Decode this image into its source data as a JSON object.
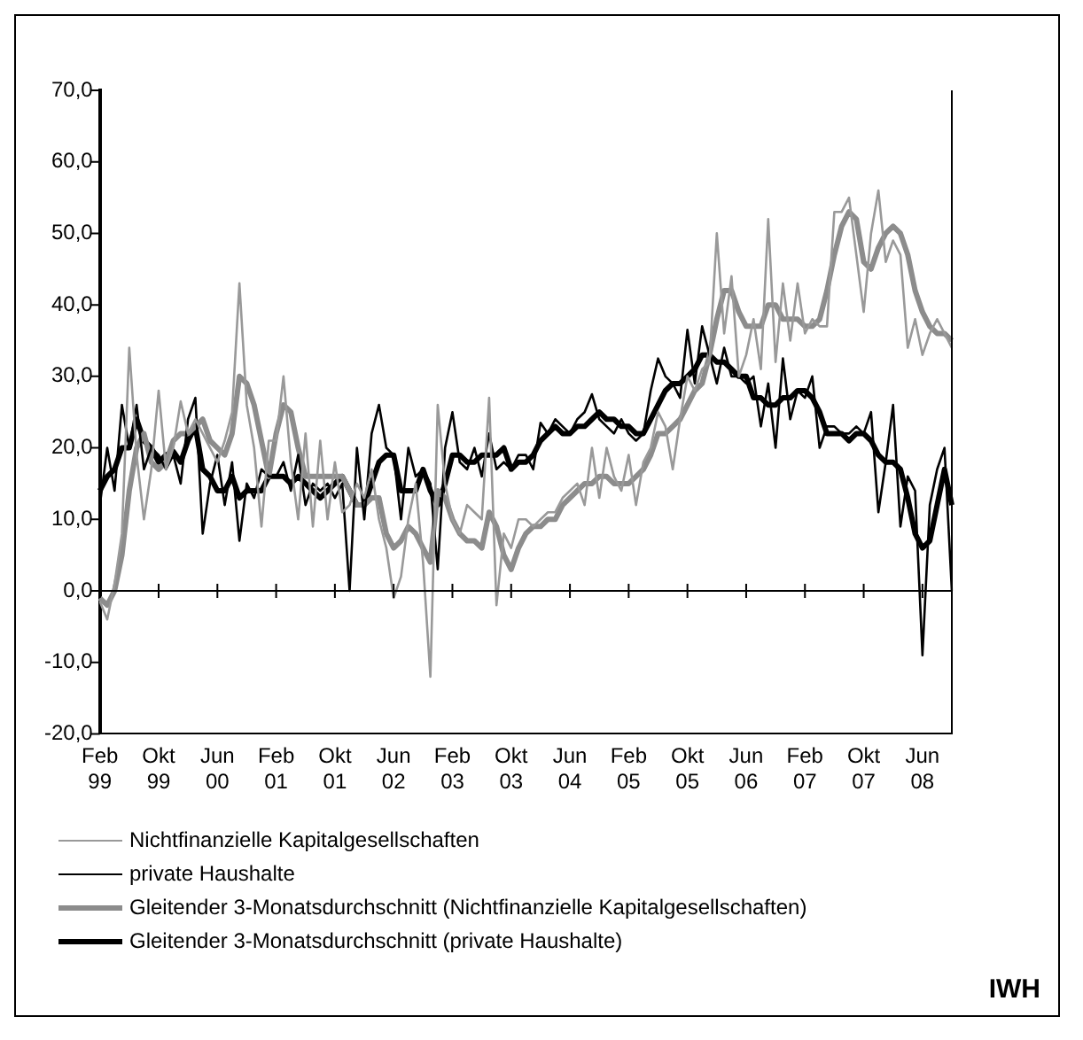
{
  "chart_data": {
    "type": "line",
    "categories": [
      "Feb 99",
      null,
      null,
      null,
      null,
      null,
      null,
      null,
      "Okt 99",
      null,
      null,
      null,
      null,
      null,
      null,
      null,
      "Jun 00",
      null,
      null,
      null,
      null,
      null,
      null,
      null,
      "Feb 01",
      null,
      null,
      null,
      null,
      null,
      null,
      null,
      "Okt 01",
      null,
      null,
      null,
      null,
      null,
      null,
      null,
      "Jun 02",
      null,
      null,
      null,
      null,
      null,
      null,
      null,
      "Feb 03",
      null,
      null,
      null,
      null,
      null,
      null,
      null,
      "Okt 03",
      null,
      null,
      null,
      null,
      null,
      null,
      null,
      "Jun 04",
      null,
      null,
      null,
      null,
      null,
      null,
      null,
      "Feb 05",
      null,
      null,
      null,
      null,
      null,
      null,
      null,
      "Okt 05",
      null,
      null,
      null,
      null,
      null,
      null,
      null,
      "Jun 06",
      null,
      null,
      null,
      null,
      null,
      null,
      null,
      "Feb 07",
      null,
      null,
      null,
      null,
      null,
      null,
      null,
      "Okt 07",
      null,
      null,
      null,
      null,
      null,
      null,
      null,
      "Jun 08",
      null,
      null,
      null,
      null
    ],
    "series": [
      {
        "name": "Nichtfinanzielle Kapitalgesellschaften",
        "color": "#999999",
        "values": [
          -1.5,
          -4,
          1,
          8,
          34,
          19,
          10,
          17,
          28,
          17,
          20,
          26.5,
          22,
          24,
          22,
          20,
          18,
          21,
          25,
          43,
          26,
          20,
          9,
          21,
          21,
          30,
          18,
          10,
          22,
          9,
          21,
          10,
          18,
          11,
          12,
          15,
          13,
          17,
          10,
          6,
          -1,
          2,
          10,
          15,
          4,
          -12,
          26,
          15,
          10,
          8,
          12,
          11,
          10,
          27,
          -2,
          8,
          6,
          10,
          10,
          9,
          10,
          11,
          11,
          13,
          14,
          15,
          12,
          20,
          13,
          20,
          16,
          14,
          19,
          12,
          18,
          20,
          25,
          23,
          17,
          24,
          30,
          28,
          31,
          32,
          50,
          36,
          44,
          30,
          33,
          38,
          31,
          52,
          32,
          43,
          35,
          43,
          36,
          38,
          37,
          37,
          53,
          53,
          55,
          47,
          39,
          50,
          56,
          46,
          49,
          47,
          34,
          38,
          33,
          36,
          38,
          36,
          34
        ]
      },
      {
        "name": "private Haushalte",
        "color": "#000000",
        "values": [
          12,
          20,
          14,
          26,
          20,
          26,
          17,
          20,
          19,
          17,
          19,
          15,
          24,
          27,
          8,
          15,
          19,
          12,
          18,
          7,
          15,
          13,
          17,
          16,
          16,
          18,
          14,
          19,
          12,
          15,
          14,
          15,
          13,
          15,
          0,
          20,
          10,
          22,
          26,
          20,
          19,
          10,
          20,
          16,
          17,
          15,
          3,
          20,
          25,
          18,
          17,
          20,
          16,
          22,
          17,
          18,
          17,
          19,
          19,
          17,
          23.5,
          22,
          24,
          23,
          22,
          24,
          25,
          27.5,
          24,
          23,
          22,
          24,
          22,
          21,
          22,
          28,
          32.5,
          30,
          29,
          27,
          36.5,
          29,
          37,
          33,
          29,
          34,
          30,
          30,
          29,
          30,
          23,
          29,
          20,
          32.5,
          24,
          28,
          27,
          30,
          20,
          23,
          23,
          22,
          22,
          23,
          22,
          25,
          11,
          18,
          26,
          9,
          16,
          14,
          -9,
          12,
          17,
          20,
          0
        ]
      },
      {
        "name": "Gleitender 3-Monatsdurchschnitt (Nichtfinanzielle Kapitalgesellschaften)",
        "color": "#8c8c8c",
        "values": [
          -1,
          -2,
          0,
          5,
          14,
          20,
          22,
          18,
          17,
          18,
          21,
          22,
          22,
          23,
          24,
          21,
          20,
          19,
          22,
          30,
          29,
          26,
          21,
          16,
          22,
          26,
          25,
          20,
          16,
          16,
          16,
          16,
          16,
          16,
          14,
          12,
          12,
          13,
          13,
          8,
          6,
          7,
          9,
          8,
          6,
          4,
          14,
          13,
          10,
          8,
          7,
          7,
          6,
          11,
          9,
          5,
          3,
          6,
          8,
          9,
          9,
          10,
          10,
          12,
          13,
          14,
          15,
          15,
          16,
          16,
          15,
          15,
          15,
          16,
          17,
          19,
          22,
          22,
          23,
          24,
          26,
          28,
          29,
          33,
          38,
          42,
          42,
          39,
          37,
          37,
          37,
          40,
          40,
          38,
          38,
          38,
          37,
          37,
          38,
          42,
          47,
          51,
          53,
          52,
          46,
          45,
          48,
          50,
          51,
          50,
          47,
          42,
          39,
          37,
          36,
          36,
          35
        ]
      },
      {
        "name": "Gleitender 3-Monatsdurchschnitt (private Haushalte)",
        "color": "#000000",
        "values": [
          14,
          16,
          17,
          20,
          20,
          24,
          21,
          20,
          18,
          19,
          19.5,
          18,
          21,
          23,
          17,
          16,
          14,
          14,
          16,
          13,
          14,
          14,
          14,
          16,
          16,
          16,
          15,
          16,
          15,
          14,
          13,
          14,
          15,
          16,
          14,
          12,
          12,
          15,
          18,
          19,
          19,
          14,
          14,
          14,
          17,
          14,
          12,
          15,
          19,
          19,
          18,
          18,
          19,
          19,
          19,
          20,
          17,
          18,
          18,
          19,
          21,
          22,
          23,
          22,
          22,
          23,
          23,
          24,
          25,
          24,
          24,
          23,
          23,
          22,
          22,
          24,
          26,
          28,
          29,
          29,
          30,
          31,
          33,
          33,
          32,
          32,
          31,
          30,
          30,
          27,
          27,
          26,
          26,
          27,
          27,
          28,
          28,
          27,
          25,
          22,
          22,
          22,
          21,
          22,
          22,
          21,
          19,
          18,
          18,
          17,
          13,
          8,
          6,
          7,
          12,
          17,
          12
        ]
      }
    ],
    "ylim": [
      -20,
      70
    ],
    "yticks": [
      {
        "value": -20,
        "label": "-20,0"
      },
      {
        "value": -10,
        "label": "-10,0"
      },
      {
        "value": 0,
        "label": "0,0"
      },
      {
        "value": 10,
        "label": "10,0"
      },
      {
        "value": 20,
        "label": "20,0"
      },
      {
        "value": 30,
        "label": "30,0"
      },
      {
        "value": 40,
        "label": "40,0"
      },
      {
        "value": 50,
        "label": "50,0"
      },
      {
        "value": 60,
        "label": "60,0"
      },
      {
        "value": 70,
        "label": "70,0"
      }
    ],
    "ref_lines": [
      {
        "axis": "y",
        "value": 0,
        "color": "#000000",
        "line_style": "solid"
      }
    ],
    "grid": false,
    "legend": "bottom",
    "marker": "none",
    "line_style": "solid",
    "annotations": [
      "IWH"
    ]
  }
}
